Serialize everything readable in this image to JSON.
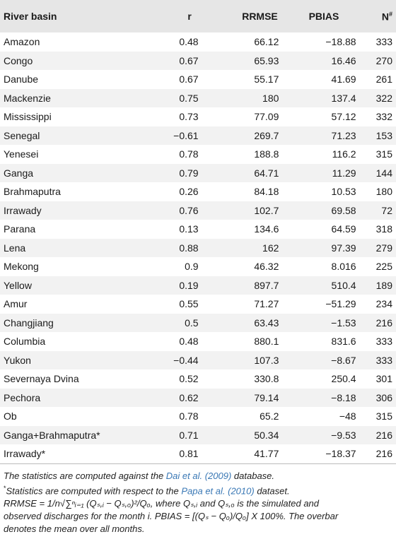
{
  "table": {
    "headers": [
      "River basin",
      "r",
      "RRMSE",
      "PBIAS",
      "N#"
    ],
    "rows": [
      [
        "Amazon",
        "0.48",
        "66.12",
        "−18.88",
        "333"
      ],
      [
        "Congo",
        "0.67",
        "65.93",
        "16.46",
        "270"
      ],
      [
        "Danube",
        "0.67",
        "55.17",
        "41.69",
        "261"
      ],
      [
        "Mackenzie",
        "0.75",
        "180",
        "137.4",
        "322"
      ],
      [
        "Mississippi",
        "0.73",
        "77.09",
        "57.12",
        "332"
      ],
      [
        "Senegal",
        "−0.61",
        "269.7",
        "71.23",
        "153"
      ],
      [
        "Yenesei",
        "0.78",
        "188.8",
        "116.2",
        "315"
      ],
      [
        "Ganga",
        "0.79",
        "64.71",
        "11.29",
        "144"
      ],
      [
        "Brahmaputra",
        "0.26",
        "84.18",
        "10.53",
        "180"
      ],
      [
        "Irrawady",
        "0.76",
        "102.7",
        "69.58",
        "72"
      ],
      [
        "Parana",
        "0.13",
        "134.6",
        "64.59",
        "318"
      ],
      [
        "Lena",
        "0.88",
        "162",
        "97.39",
        "279"
      ],
      [
        "Mekong",
        "0.9",
        "46.32",
        "8.016",
        "225"
      ],
      [
        "Yellow",
        "0.19",
        "897.7",
        "510.4",
        "189"
      ],
      [
        "Amur",
        "0.55",
        "71.27",
        "−51.29",
        "234"
      ],
      [
        "Changjiang",
        "0.5",
        "63.43",
        "−1.53",
        "216"
      ],
      [
        "Columbia",
        "0.48",
        "880.1",
        "831.6",
        "333"
      ],
      [
        "Yukon",
        "−0.44",
        "107.3",
        "−8.67",
        "333"
      ],
      [
        "Severnaya Dvina",
        "0.52",
        "330.8",
        "250.4",
        "301"
      ],
      [
        "Pechora",
        "0.62",
        "79.14",
        "−8.18",
        "306"
      ],
      [
        "Ob",
        "0.78",
        "65.2",
        "−48",
        "315"
      ],
      [
        "Ganga+Brahmaputra*",
        "0.71",
        "50.34",
        "−9.53",
        "216"
      ],
      [
        "Irrawady*",
        "0.81",
        "41.77",
        "−18.37",
        "216"
      ]
    ]
  },
  "notes": {
    "hash_prefix": "The statistics are computed against the ",
    "hash_link": "Dai et al. (2009)",
    "hash_suffix": " database.",
    "star_prefix": "Statistics are computed with respect to the ",
    "star_link": "Papa et al. (2010)",
    "star_suffix": " dataset.",
    "rrmse_line1": "RRMSE = 1/n√∑ⁿᵢ₌₁ (Qₛ,ᵢ − Qₛ,ₒ)²/Qₒ, where Qₛ,ᵢ and Qₛ,ₒ is the simulated and",
    "rrmse_line2": "observed discharges for the month i. PBIAS = [(Qₛ − Qₒ)/Qₒ] X 100%. The overbar",
    "rrmse_line3": "denotes the mean over all months."
  }
}
